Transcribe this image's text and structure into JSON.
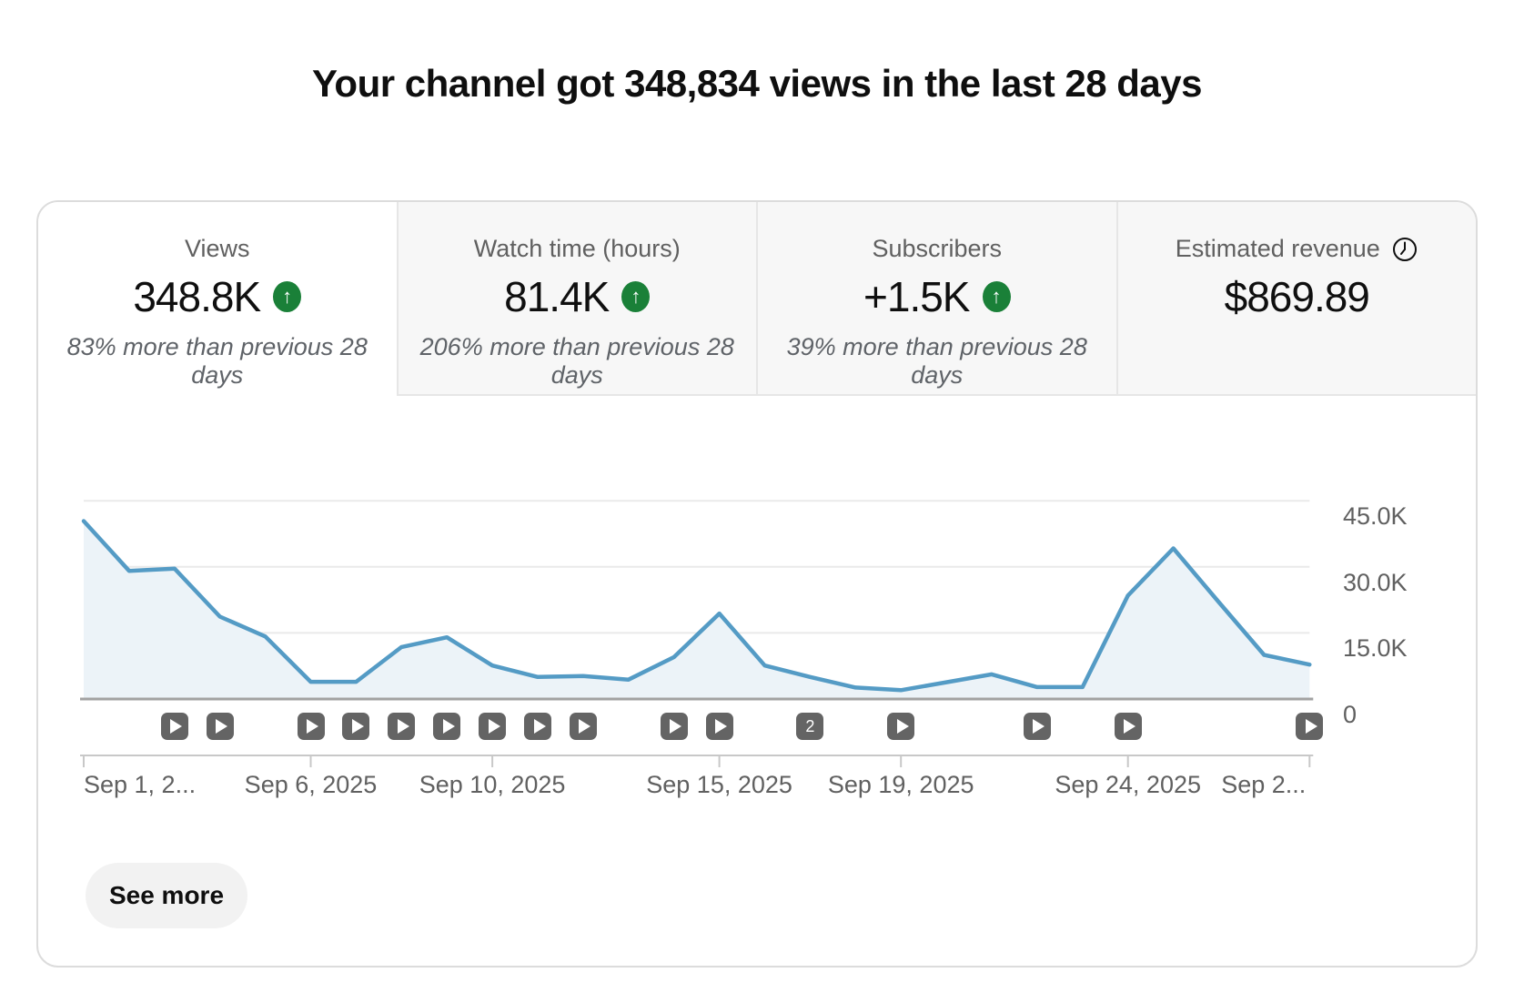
{
  "page": {
    "title": "Your channel got 348,834 views in the last 28 days"
  },
  "tabs": [
    {
      "label": "Views",
      "value": "348.8K",
      "trend": "up",
      "subtitle": "83% more than previous 28 days",
      "active": true,
      "clock_icon": false
    },
    {
      "label": "Watch time (hours)",
      "value": "81.4K",
      "trend": "up",
      "subtitle": "206% more than previous 28 days",
      "active": false,
      "clock_icon": false
    },
    {
      "label": "Subscribers",
      "value": "+1.5K",
      "trend": "up",
      "subtitle": "39% more than previous 28 days",
      "active": false,
      "clock_icon": false
    },
    {
      "label": "Estimated revenue",
      "value": "$869.89",
      "trend": null,
      "subtitle": "",
      "active": false,
      "clock_icon": true
    }
  ],
  "chart_data": {
    "type": "area",
    "title": "Daily views, last 28 days",
    "x": [
      "Sep 1",
      "Sep 2",
      "Sep 3",
      "Sep 4",
      "Sep 5",
      "Sep 6",
      "Sep 7",
      "Sep 8",
      "Sep 9",
      "Sep 10",
      "Sep 11",
      "Sep 12",
      "Sep 13",
      "Sep 14",
      "Sep 15",
      "Sep 16",
      "Sep 17",
      "Sep 18",
      "Sep 19",
      "Sep 20",
      "Sep 21",
      "Sep 22",
      "Sep 23",
      "Sep 24",
      "Sep 25",
      "Sep 26",
      "Sep 27",
      "Sep 28"
    ],
    "series": [
      {
        "name": "Views",
        "values": [
          40400,
          29100,
          29600,
          18700,
          14200,
          3900,
          3900,
          11800,
          14000,
          7600,
          5000,
          5200,
          4400,
          9500,
          19400,
          7600,
          5000,
          2600,
          2000,
          3800,
          5600,
          2700,
          2700,
          23500,
          34200,
          22000,
          10000,
          7800
        ]
      }
    ],
    "ylim": [
      0,
      45000
    ],
    "grid": "horizontal",
    "legend": "none",
    "yticks": [
      {
        "value": 45000,
        "label": "45.0K"
      },
      {
        "value": 30000,
        "label": "30.0K"
      },
      {
        "value": 15000,
        "label": "15.0K"
      },
      {
        "value": 0,
        "label": "0"
      }
    ],
    "xticks": [
      {
        "day": 1,
        "label": "Sep 1, 2...",
        "align": "left"
      },
      {
        "day": 6,
        "label": "Sep 6, 2025",
        "align": "center"
      },
      {
        "day": 10,
        "label": "Sep 10, 2025",
        "align": "center"
      },
      {
        "day": 15,
        "label": "Sep 15, 2025",
        "align": "center"
      },
      {
        "day": 19,
        "label": "Sep 19, 2025",
        "align": "center"
      },
      {
        "day": 24,
        "label": "Sep 24, 2025",
        "align": "center"
      },
      {
        "day": 28,
        "label": "Sep 2...",
        "align": "right"
      }
    ],
    "video_markers": [
      {
        "day": 3,
        "count": 1
      },
      {
        "day": 4,
        "count": 1
      },
      {
        "day": 6,
        "count": 1
      },
      {
        "day": 7,
        "count": 1
      },
      {
        "day": 8,
        "count": 1
      },
      {
        "day": 9,
        "count": 1
      },
      {
        "day": 10,
        "count": 1
      },
      {
        "day": 11,
        "count": 1
      },
      {
        "day": 12,
        "count": 1
      },
      {
        "day": 14,
        "count": 1
      },
      {
        "day": 15,
        "count": 1
      },
      {
        "day": 17,
        "count": 2
      },
      {
        "day": 19,
        "count": 1
      },
      {
        "day": 22,
        "count": 1
      },
      {
        "day": 24,
        "count": 1
      },
      {
        "day": 28,
        "count": 1
      }
    ],
    "colors": {
      "line": "#549bc5",
      "fill": "#ecf3f8",
      "grid": "#eaeaea",
      "baseline": "#a2a2a2",
      "axis": "#c8c8c8",
      "marker": "#646464"
    }
  },
  "footer": {
    "see_more_label": "See more"
  },
  "colors": {
    "trend_green": "#1a8038",
    "text_primary": "#0f0f0f",
    "text_secondary": "#606060",
    "card_border": "#dcdcdc",
    "inactive_tab_bg": "#f7f7f7"
  }
}
